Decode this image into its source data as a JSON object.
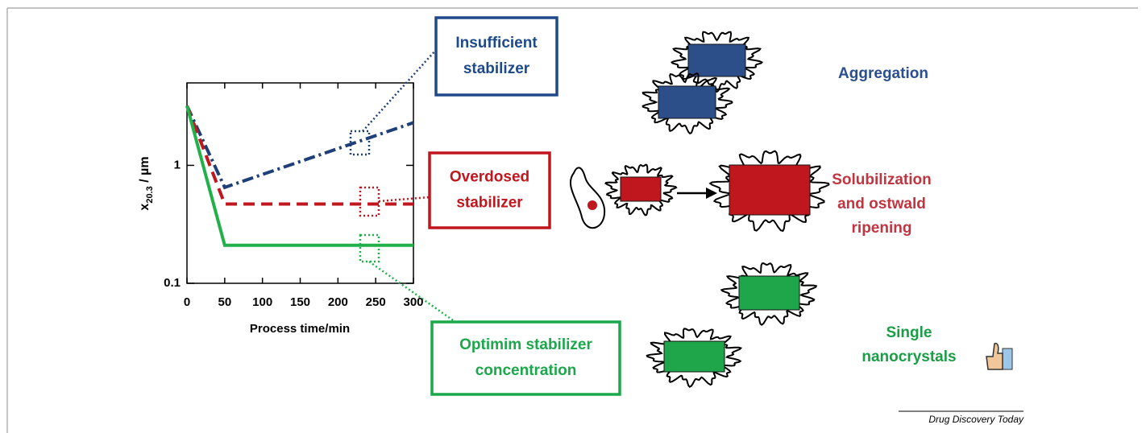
{
  "chart_data": {
    "type": "line",
    "xlabel": "Process time/min",
    "ylabel": [
      "x",
      "20.3",
      " / µm"
    ],
    "x": [
      0,
      50,
      300
    ],
    "series": [
      {
        "color": "#1f3f78",
        "dash": "14 5 3 5",
        "values": [
          3.2,
          0.65,
          2.3
        ]
      },
      {
        "color": "#c0161e",
        "dash": "14 8",
        "values": [
          3.2,
          0.47,
          0.47
        ]
      },
      {
        "color": "#22b04b",
        "dash": "none",
        "values": [
          3.2,
          0.21,
          0.21
        ]
      }
    ],
    "xlim": [
      0,
      300
    ],
    "xticks": [
      0,
      50,
      100,
      150,
      200,
      250,
      300
    ],
    "ylim": [
      0.1,
      5
    ],
    "yticks": [
      0.1,
      1
    ],
    "log_y": true
  },
  "callouts": [
    {
      "lines": [
        "Insufficient",
        "stabilizer"
      ],
      "color": "#1e4a8a"
    },
    {
      "lines": [
        "Overdosed",
        "stabilizer"
      ],
      "color": "#c0161e"
    },
    {
      "lines": [
        "Optimim stabilizer",
        "concentration"
      ],
      "color": "#1aa84a"
    }
  ],
  "outcomes": [
    {
      "lines": [
        "Aggregation"
      ],
      "color": "#2a4f8f"
    },
    {
      "lines": [
        "Solubilization",
        "and ostwald",
        "ripening"
      ],
      "color": "#c0353f"
    },
    {
      "lines": [
        "Single",
        "nanocrystals"
      ],
      "color": "#1a9e45"
    }
  ],
  "source": "Drug Discovery Today"
}
